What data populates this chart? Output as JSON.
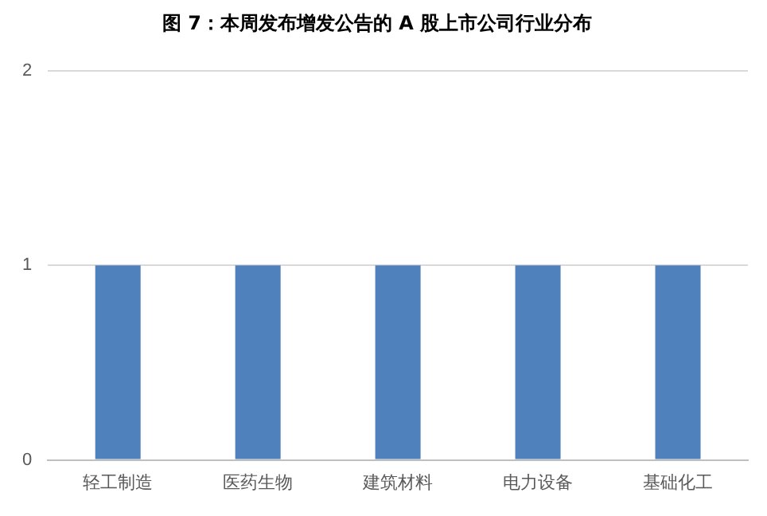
{
  "chart_data": {
    "type": "bar",
    "title": "图 7：本周发布增发公告的 A 股上市公司行业分布",
    "categories": [
      "轻工制造",
      "医药生物",
      "建筑材料",
      "电力设备",
      "基础化工"
    ],
    "values": [
      1,
      1,
      1,
      1,
      1
    ],
    "color": "#4f81bd",
    "ylim": [
      0,
      2
    ],
    "yticks": [
      0,
      1,
      2
    ],
    "grid": "y",
    "legend": false
  }
}
